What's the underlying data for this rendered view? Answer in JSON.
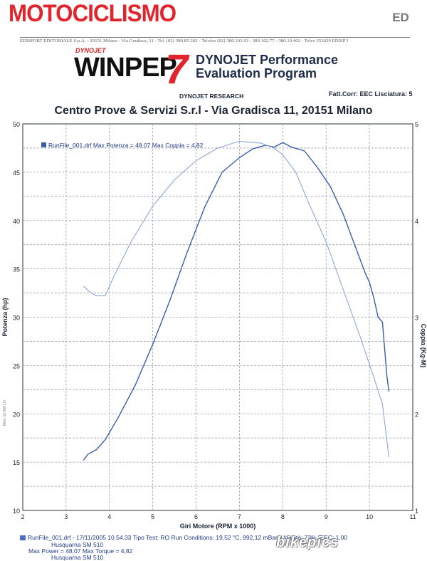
{
  "masthead": "MOTOCICLISMO",
  "publisher_logo": "ED",
  "publisher_line": "EDISPORT EDITORIALE S.p.A. - 20151 Milano - Via Gradisca, 11 - Tel. (02) 380.85.302 - Telefax (02) 380.103.93 - 380.102.77 - 380.10.402 - Telex 353629 EDISP I",
  "winpep": {
    "brand": "DYNOJET",
    "word": "WINPEP",
    "seven": "7"
  },
  "program_title_line1": "DYNOJET Performance",
  "program_title_line2": "Evaluation Program",
  "research_label": "DYNOJET RESEARCH",
  "settings_label": "Fatt.Corr: EEC  Lisciatura: 5",
  "chart_title": "Centro Prove & Servizi S.r.l - Via Gradisca 11, 20151 Milano",
  "side_tag": "Mod. 10.000 LG",
  "watermark": "bikepics",
  "colors": {
    "series_power": "#3a5ea8",
    "series_torque": "#8ea6d6",
    "grid": "#9aa3b0",
    "accent": "#e0262c"
  },
  "footer": {
    "line1": "RunFile_001.drf - 17/11/2005 10.54.33  Tipo Test: RO  Run Conditions: 19,52 °C, 992,12 mBar, Umidità: 73%, EEC: 1,00",
    "line2": "Husquarna SM 510",
    "line3": "Max Power = 48,07  Max Torque = 4,82",
    "line4": "Husquarna SM 510"
  },
  "chart_data": {
    "type": "line",
    "xlabel": "Giri Motore (RPM x 1000)",
    "ylabel": "Potenza (hp)",
    "y2label": "Coppia (Kg-M)",
    "xlim": [
      2,
      11
    ],
    "ylim": [
      10,
      50
    ],
    "y2lim": [
      1,
      5
    ],
    "x_ticks": [
      "2",
      "3",
      "4",
      "5",
      "6",
      "7",
      "8",
      "9",
      "10",
      "11"
    ],
    "y_ticks": [
      "10",
      "15",
      "20",
      "25",
      "30",
      "35",
      "40",
      "45",
      "50"
    ],
    "y2_ticks": [
      "1",
      "2",
      "3",
      "4",
      "5"
    ],
    "grid": true,
    "legend": {
      "text": "RunFile_001.drf Max Potenza = 48,07     Max Coppia = 4,82",
      "placement": "top-left"
    },
    "series": [
      {
        "name": "Potenza",
        "axis": "left",
        "x": [
          3.4,
          3.5,
          3.7,
          3.9,
          4.2,
          4.6,
          5.0,
          5.4,
          5.8,
          6.2,
          6.6,
          7.0,
          7.3,
          7.6,
          7.8,
          8.0,
          8.2,
          8.5,
          8.8,
          9.1,
          9.4,
          9.7,
          9.9,
          10.0,
          10.1,
          10.2,
          10.3,
          10.4,
          10.45
        ],
        "y": [
          15.2,
          15.8,
          16.3,
          17.3,
          19.6,
          23.0,
          27.2,
          31.8,
          36.8,
          41.4,
          45.0,
          46.5,
          47.4,
          47.8,
          47.6,
          48.07,
          47.6,
          47.2,
          45.5,
          43.5,
          40.6,
          37.0,
          34.6,
          33.6,
          32.0,
          30.0,
          29.5,
          24.0,
          22.3
        ]
      },
      {
        "name": "Coppia",
        "axis": "right",
        "x": [
          3.4,
          3.55,
          3.7,
          3.9,
          4.1,
          4.5,
          5.0,
          5.5,
          6.0,
          6.5,
          7.0,
          7.5,
          7.8,
          8.0,
          8.3,
          8.6,
          9.0,
          9.4,
          9.8,
          10.1,
          10.3,
          10.45
        ],
        "y": [
          3.32,
          3.26,
          3.22,
          3.22,
          3.42,
          3.78,
          4.15,
          4.42,
          4.62,
          4.75,
          4.82,
          4.8,
          4.75,
          4.68,
          4.5,
          4.18,
          3.78,
          3.28,
          2.78,
          2.38,
          2.1,
          1.55
        ]
      }
    ]
  }
}
